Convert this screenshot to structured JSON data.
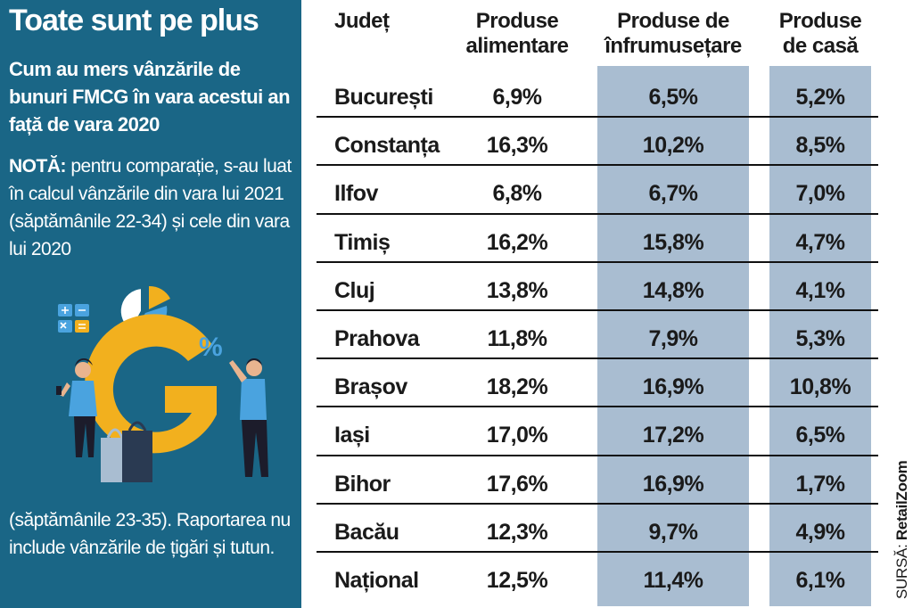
{
  "left_panel": {
    "title": "Toate sunt pe plus",
    "subtitle": "Cum au mers vânzările de bunuri FMCG în vara acestui an față de vara 2020",
    "note_label": "NOTĂ:",
    "note_text": " pentru comparație, s-au luat în calcul vânzările din vara lui 2021 (săptămânile 22-34) și cele din vara lui 2020",
    "note_continued": "(săptămânile 23-35). Raportarea nu include vânzările de țigări și tutun.",
    "colors": {
      "panel": "#1a6686",
      "accent_yellow": "#f2b01e",
      "accent_blue": "#4aa3df"
    }
  },
  "source": {
    "label": "SURSĂ:",
    "name": "RetailZoom"
  },
  "chart_data": {
    "type": "table",
    "columns": [
      "Județ",
      "Produse alimentare",
      "Produse de înfrumusețare",
      "Produse de casă"
    ],
    "rows": [
      {
        "county": "București",
        "values": [
          "6,9%",
          "6,5%",
          "5,2%"
        ]
      },
      {
        "county": "Constanța",
        "values": [
          "16,3%",
          "10,2%",
          "8,5%"
        ]
      },
      {
        "county": "Ilfov",
        "values": [
          "6,8%",
          "6,7%",
          "7,0%"
        ]
      },
      {
        "county": "Timiș",
        "values": [
          "16,2%",
          "15,8%",
          "4,7%"
        ]
      },
      {
        "county": "Cluj",
        "values": [
          "13,8%",
          "14,8%",
          "4,1%"
        ]
      },
      {
        "county": "Prahova",
        "values": [
          "11,8%",
          "7,9%",
          "5,3%"
        ]
      },
      {
        "county": "Brașov",
        "values": [
          "18,2%",
          "16,9%",
          "10,8%"
        ]
      },
      {
        "county": "Iași",
        "values": [
          "17,0%",
          "17,2%",
          "6,5%"
        ]
      },
      {
        "county": "Bihor",
        "values": [
          "17,6%",
          "16,9%",
          "1,7%"
        ]
      },
      {
        "county": "Bacău",
        "values": [
          "12,3%",
          "9,7%",
          "4,9%"
        ]
      },
      {
        "county": "Național",
        "values": [
          "12,5%",
          "11,4%",
          "6,1%"
        ]
      }
    ],
    "band_color": "#a9bdd1"
  }
}
